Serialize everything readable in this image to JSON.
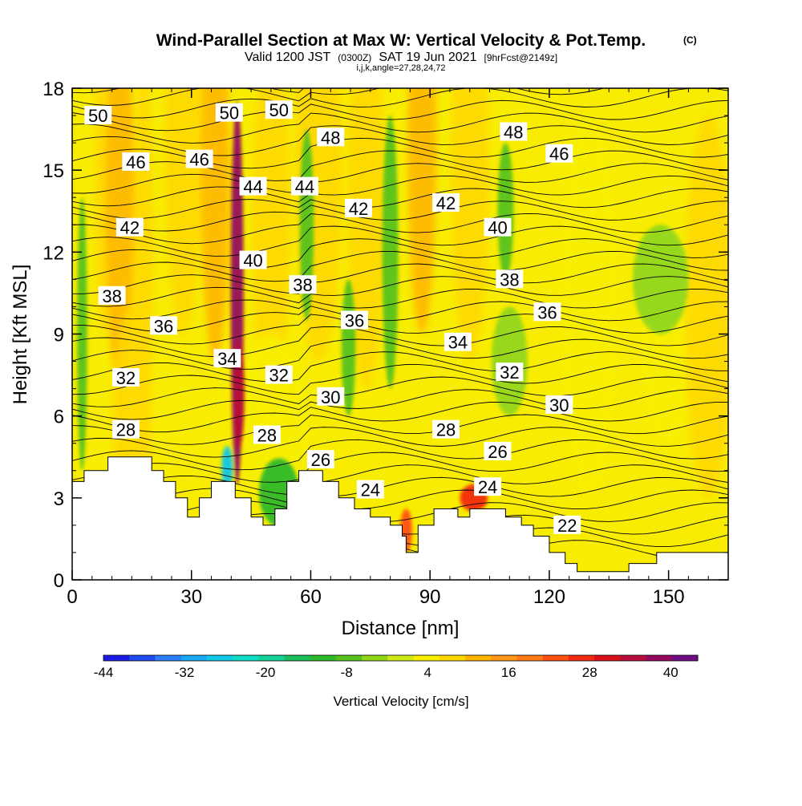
{
  "titles": {
    "main": "Wind-Parallel Section at Max W: Vertical Velocity & Pot.Temp.",
    "copyright": "(C)",
    "valid_prefix": "Valid 1200 JST",
    "valid_utc": "(0300Z)",
    "valid_date": "SAT 19 Jun 2021",
    "forecast": "[9hrFcst@2149z]",
    "indices": "i,j,k,angle=27,28,24,72"
  },
  "chart_data": {
    "type": "heatmap",
    "title": "Wind-Parallel Section at Max W: Vertical Velocity & Pot.Temp.",
    "xlabel": "Distance [nm]",
    "ylabel": "Height [Kft MSL]",
    "xlim": [
      0,
      165
    ],
    "ylim": [
      0,
      18
    ],
    "x_ticks": [
      0,
      30,
      60,
      90,
      120,
      150
    ],
    "y_ticks": [
      0,
      3,
      6,
      9,
      12,
      15,
      18
    ],
    "colorbar": {
      "title": "Vertical Velocity [cm/s]",
      "tick_labels": [
        -44,
        -32,
        -20,
        -8,
        4,
        16,
        28,
        40
      ],
      "levels": [
        -44,
        -40,
        -36,
        -32,
        -28,
        -24,
        -20,
        -16,
        -12,
        -8,
        -4,
        0,
        4,
        8,
        12,
        16,
        20,
        24,
        28,
        32,
        36,
        40,
        44
      ],
      "colors": [
        "#1a1ae6",
        "#1f4bf0",
        "#2a7ef6",
        "#1aa8f5",
        "#12c8e8",
        "#10dcc8",
        "#14d29a",
        "#1ebe5a",
        "#2fb82a",
        "#57c21e",
        "#92d61a",
        "#cfe818",
        "#f8f000",
        "#ffd800",
        "#ffb400",
        "#ff9616",
        "#ff7a18",
        "#ff5014",
        "#f22a10",
        "#d8101a",
        "#b80c3a",
        "#94085e",
        "#700c84"
      ]
    },
    "theta_contour_labels": [
      {
        "text": "50",
        "x": 6.5,
        "y": 17.0
      },
      {
        "text": "50",
        "x": 39.5,
        "y": 17.1
      },
      {
        "text": "50",
        "x": 52.0,
        "y": 17.2
      },
      {
        "text": "48",
        "x": 65.0,
        "y": 16.2
      },
      {
        "text": "48",
        "x": 111.0,
        "y": 16.4
      },
      {
        "text": "46",
        "x": 16.0,
        "y": 15.3
      },
      {
        "text": "46",
        "x": 32.0,
        "y": 15.4
      },
      {
        "text": "46",
        "x": 122.5,
        "y": 15.6
      },
      {
        "text": "44",
        "x": 45.5,
        "y": 14.4
      },
      {
        "text": "44",
        "x": 58.5,
        "y": 14.4
      },
      {
        "text": "42",
        "x": 14.5,
        "y": 12.9
      },
      {
        "text": "42",
        "x": 72.0,
        "y": 13.6
      },
      {
        "text": "42",
        "x": 94.0,
        "y": 13.8
      },
      {
        "text": "40",
        "x": 45.5,
        "y": 11.7
      },
      {
        "text": "40",
        "x": 107.0,
        "y": 12.9
      },
      {
        "text": "38",
        "x": 10.0,
        "y": 10.4
      },
      {
        "text": "38",
        "x": 58.0,
        "y": 10.8
      },
      {
        "text": "38",
        "x": 110.0,
        "y": 11.0
      },
      {
        "text": "36",
        "x": 23.0,
        "y": 9.3
      },
      {
        "text": "36",
        "x": 71.0,
        "y": 9.5
      },
      {
        "text": "36",
        "x": 119.5,
        "y": 9.8
      },
      {
        "text": "34",
        "x": 39.0,
        "y": 8.1
      },
      {
        "text": "34",
        "x": 97.0,
        "y": 8.7
      },
      {
        "text": "32",
        "x": 13.5,
        "y": 7.4
      },
      {
        "text": "32",
        "x": 52.0,
        "y": 7.5
      },
      {
        "text": "32",
        "x": 110.0,
        "y": 7.6
      },
      {
        "text": "30",
        "x": 65.0,
        "y": 6.7
      },
      {
        "text": "30",
        "x": 122.5,
        "y": 6.4
      },
      {
        "text": "28",
        "x": 13.5,
        "y": 5.5
      },
      {
        "text": "28",
        "x": 49.0,
        "y": 5.3
      },
      {
        "text": "28",
        "x": 94.0,
        "y": 5.5
      },
      {
        "text": "26",
        "x": 62.5,
        "y": 4.4
      },
      {
        "text": "26",
        "x": 107.0,
        "y": 4.7
      },
      {
        "text": "24",
        "x": 75.0,
        "y": 3.3
      },
      {
        "text": "24",
        "x": 104.5,
        "y": 3.4
      },
      {
        "text": "22",
        "x": 124.5,
        "y": 2.0
      }
    ],
    "terrain": [
      [
        0,
        3.6
      ],
      [
        3,
        3.6
      ],
      [
        3,
        4.0
      ],
      [
        9,
        4.0
      ],
      [
        9,
        4.5
      ],
      [
        20,
        4.5
      ],
      [
        20,
        4.0
      ],
      [
        23,
        4.0
      ],
      [
        23,
        3.6
      ],
      [
        26,
        3.6
      ],
      [
        26,
        3.0
      ],
      [
        29,
        3.0
      ],
      [
        29,
        2.3
      ],
      [
        32,
        2.3
      ],
      [
        32,
        3.0
      ],
      [
        35,
        3.0
      ],
      [
        35,
        3.6
      ],
      [
        41,
        3.6
      ],
      [
        41,
        3.0
      ],
      [
        45,
        3.0
      ],
      [
        45,
        2.3
      ],
      [
        48,
        2.3
      ],
      [
        48,
        2.0
      ],
      [
        51,
        2.0
      ],
      [
        51,
        2.6
      ],
      [
        54,
        2.6
      ],
      [
        54,
        3.6
      ],
      [
        57,
        3.6
      ],
      [
        57,
        4.0
      ],
      [
        63,
        4.0
      ],
      [
        63,
        3.6
      ],
      [
        67,
        3.6
      ],
      [
        67,
        3.0
      ],
      [
        71,
        3.0
      ],
      [
        71,
        2.6
      ],
      [
        75,
        2.6
      ],
      [
        75,
        2.3
      ],
      [
        80,
        2.3
      ],
      [
        80,
        2.0
      ],
      [
        83,
        2.0
      ],
      [
        83,
        1.6
      ],
      [
        84,
        1.6
      ],
      [
        84,
        1.0
      ],
      [
        87,
        1.0
      ],
      [
        87,
        2.0
      ],
      [
        91,
        2.0
      ],
      [
        91,
        2.6
      ],
      [
        97,
        2.6
      ],
      [
        97,
        2.3
      ],
      [
        100,
        2.3
      ],
      [
        100,
        2.6
      ],
      [
        109,
        2.6
      ],
      [
        109,
        2.3
      ],
      [
        113,
        2.3
      ],
      [
        113,
        2.0
      ],
      [
        116,
        2.0
      ],
      [
        116,
        1.6
      ],
      [
        120,
        1.6
      ],
      [
        120,
        1.0
      ],
      [
        124,
        1.0
      ],
      [
        124,
        0.6
      ],
      [
        127,
        0.6
      ],
      [
        127,
        0.3
      ],
      [
        140,
        0.3
      ],
      [
        140,
        0.6
      ],
      [
        147,
        0.6
      ],
      [
        147,
        1.0
      ],
      [
        165,
        1.0
      ]
    ],
    "updraft_cores": [
      {
        "x": 41.5,
        "y": 10.5,
        "w": 3.2,
        "h": 14.0,
        "value": 40
      },
      {
        "x": 42.0,
        "y": 6.8,
        "w": 2.6,
        "h": 4.0,
        "value": 36
      },
      {
        "x": 101.0,
        "y": 3.0,
        "w": 7.0,
        "h": 1.0,
        "value": 30
      },
      {
        "x": 84.0,
        "y": 1.8,
        "w": 3.0,
        "h": 1.6,
        "value": 26
      }
    ],
    "downdraft_cores": [
      {
        "x": 39.0,
        "y": 4.1,
        "w": 2.8,
        "h": 1.6,
        "value": -28
      },
      {
        "x": 2.5,
        "y": 9.0,
        "w": 2.5,
        "h": 10.0,
        "value": -8
      },
      {
        "x": 59.0,
        "y": 13.0,
        "w": 3.5,
        "h": 7.0,
        "value": -8
      },
      {
        "x": 80.0,
        "y": 12.0,
        "w": 4.0,
        "h": 10.0,
        "value": -6
      },
      {
        "x": 109.0,
        "y": 13.5,
        "w": 4.0,
        "h": 5.0,
        "value": -6
      },
      {
        "x": 110.0,
        "y": 8.0,
        "w": 9.0,
        "h": 4.0,
        "value": -4
      },
      {
        "x": 148.0,
        "y": 11.0,
        "w": 14.0,
        "h": 4.0,
        "value": -2
      },
      {
        "x": 52.0,
        "y": 3.2,
        "w": 10.0,
        "h": 2.5,
        "value": -12
      },
      {
        "x": 69.5,
        "y": 8.5,
        "w": 3.5,
        "h": 5.0,
        "value": -8
      }
    ]
  }
}
